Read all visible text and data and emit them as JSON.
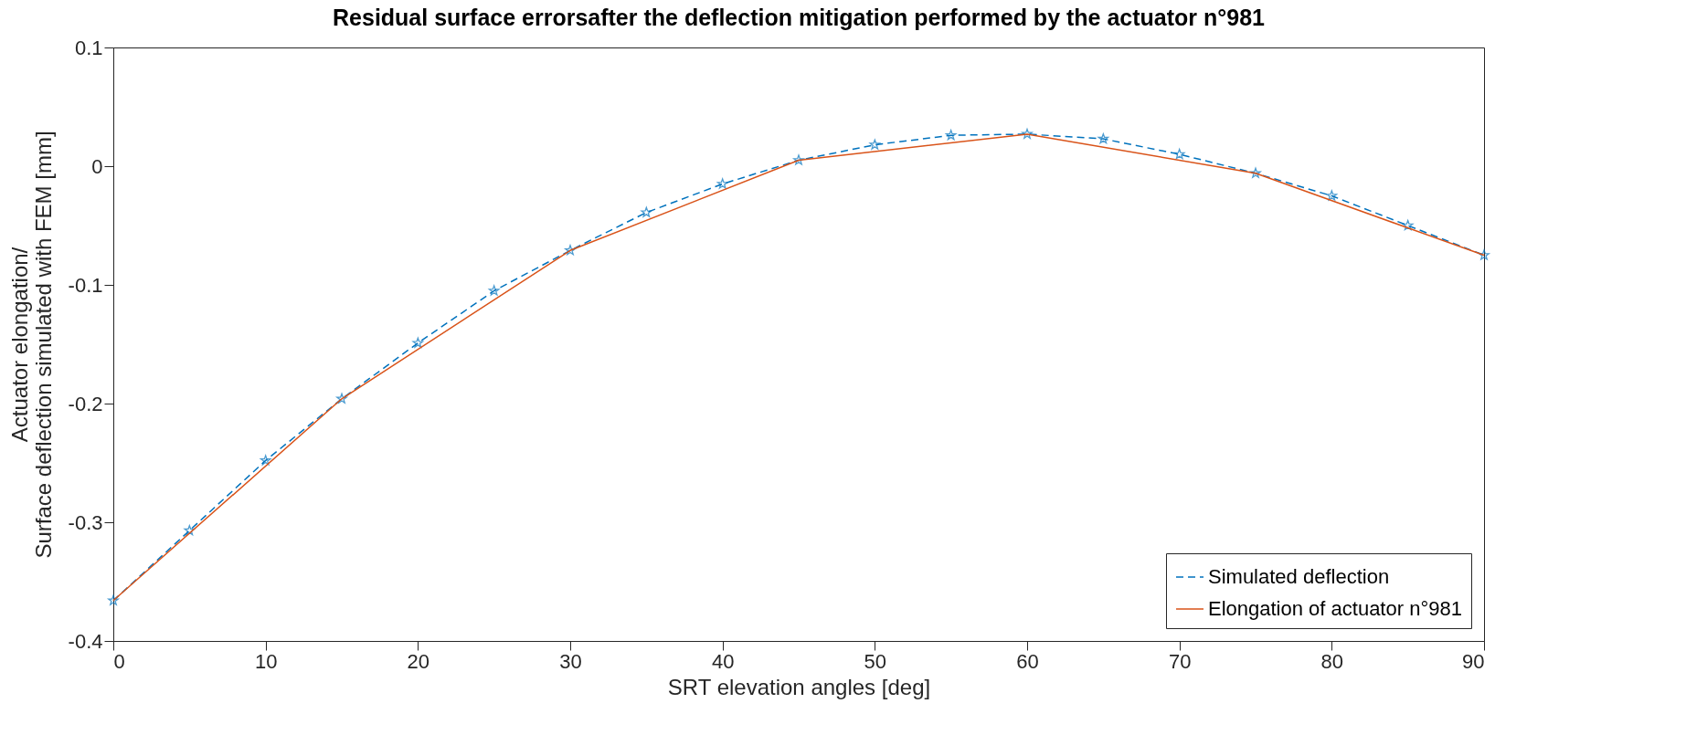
{
  "chart_data": {
    "type": "line",
    "title": "Residual surface errorsafter the deflection mitigation performed by the actuator n°981",
    "xlabel": "SRT elevation angles [deg]",
    "ylabel": "Actuator elongation/\nSurface deflection simulated with FEM [mm]",
    "x": [
      0,
      5,
      10,
      15,
      20,
      25,
      30,
      35,
      40,
      45,
      50,
      55,
      60,
      65,
      70,
      75,
      80,
      85,
      90
    ],
    "series": [
      {
        "name": "Simulated deflection",
        "color": "#0072bd",
        "marker": "star",
        "line_style": "dashed",
        "values": [
          -0.366,
          -0.307,
          -0.248,
          -0.196,
          -0.149,
          -0.105,
          -0.071,
          -0.039,
          -0.015,
          0.005,
          0.018,
          0.026,
          0.027,
          0.023,
          0.01,
          -0.006,
          -0.025,
          -0.05,
          -0.075
        ]
      },
      {
        "name": "Elongation of actuator n°981",
        "color": "#d95319",
        "marker": "none",
        "line_style": "solid",
        "x": [
          0,
          15,
          30,
          45,
          60,
          75,
          90
        ],
        "values": [
          -0.366,
          -0.196,
          -0.071,
          0.005,
          0.027,
          -0.006,
          -0.075
        ]
      }
    ],
    "xlim": [
      0,
      90
    ],
    "xticks": [
      0,
      10,
      20,
      30,
      40,
      50,
      60,
      70,
      80,
      90
    ],
    "ylim": [
      -0.4,
      0.1
    ],
    "yticks": [
      -0.4,
      -0.3,
      -0.2,
      -0.1,
      0,
      0.1
    ],
    "grid": false,
    "legend": "bottom right"
  }
}
